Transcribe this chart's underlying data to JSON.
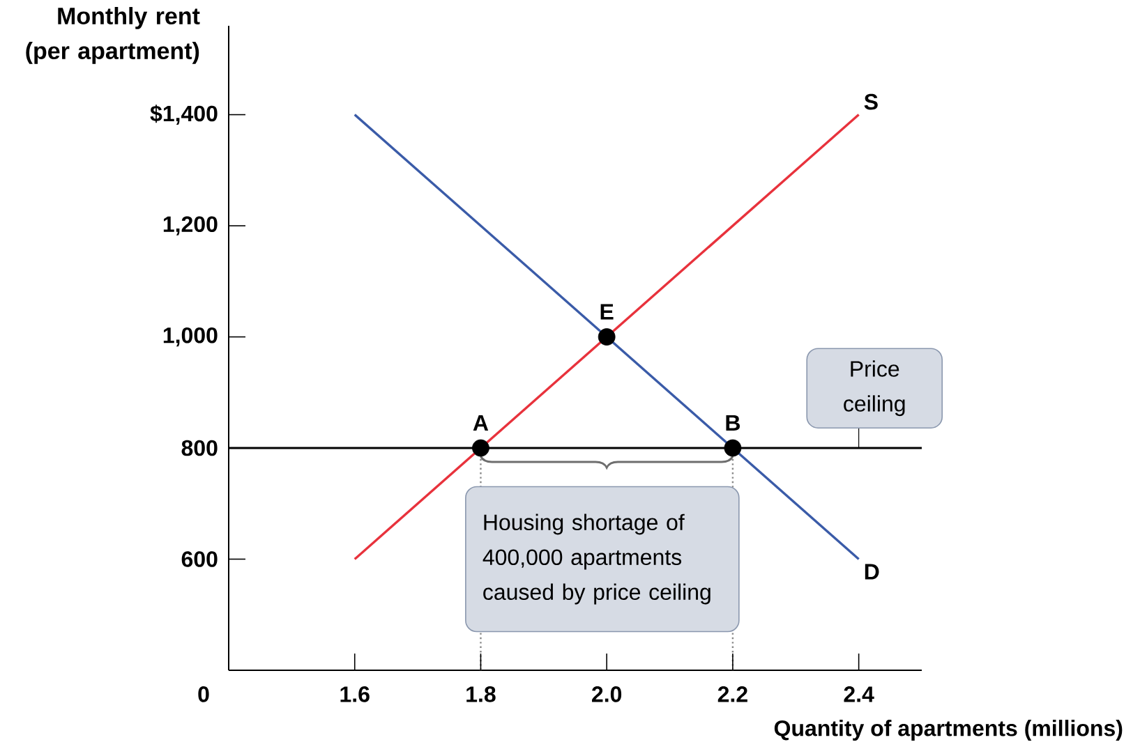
{
  "chart_data": {
    "type": "line",
    "xlabel": "Quantity of apartments (millions)",
    "ylabel": "Monthly rent (per apartment)",
    "xlim": [
      1.4,
      2.5
    ],
    "ylim": [
      400,
      1560
    ],
    "xticks": [
      {
        "value": 1.6,
        "label": "1.6"
      },
      {
        "value": 1.8,
        "label": "1.8"
      },
      {
        "value": 2.0,
        "label": "2.0"
      },
      {
        "value": 2.2,
        "label": "2.2"
      },
      {
        "value": 2.4,
        "label": "2.4"
      }
    ],
    "yticks": [
      600,
      800,
      {
        "value": 1000,
        "label": "1,000"
      },
      {
        "value": 1200,
        "label": "1,200"
      },
      {
        "value": 1400,
        "label": "$1,400"
      }
    ],
    "series": [
      {
        "name": "S",
        "color": "#e8323c",
        "x": [
          1.6,
          2.4
        ],
        "values": [
          600,
          1400
        ]
      },
      {
        "name": "D",
        "color": "#3a5ba8",
        "x": [
          1.6,
          2.4
        ],
        "values": [
          1400,
          600
        ]
      },
      {
        "type": "scatter",
        "color": "#000000",
        "marker": "circle",
        "x": [
          1.8,
          2.0,
          2.2
        ],
        "values": [
          800,
          1000,
          800
        ]
      }
    ],
    "ref_lines": [
      {
        "axis": "y",
        "value": 800,
        "label": "Price ceiling",
        "color": "#000000"
      },
      {
        "axis": "x",
        "value": 1.8,
        "color": "#888888",
        "line_style": "dotted"
      },
      {
        "axis": "x",
        "value": 2.2,
        "color": "#888888",
        "line_style": "dotted"
      }
    ],
    "annotations": [
      {
        "text": "E",
        "x": 2.0,
        "y": 1000
      },
      {
        "text": "A",
        "x": 1.8,
        "y": 800
      },
      {
        "text": "B",
        "x": 2.2,
        "y": 800
      },
      "Housing shortage of 400,000 apartments caused by price ceiling",
      "0"
    ],
    "marker": "none",
    "grid": false
  }
}
